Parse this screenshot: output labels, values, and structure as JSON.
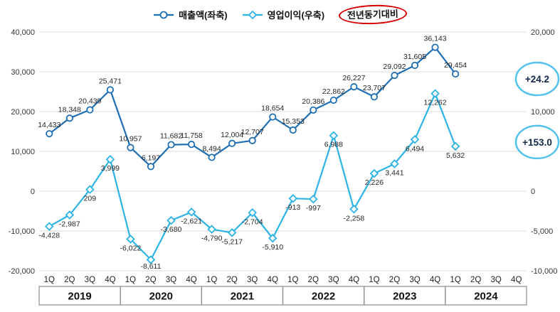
{
  "legend": {
    "series1": "매출액(좌축)",
    "series2": "영업이익(우축)",
    "yoy": "전년동기대비"
  },
  "colors": {
    "revenue": "#1F6FB5",
    "profit": "#2EB3E6",
    "grid": "#DADADA",
    "tick_text": "#333333",
    "data_label": "#262626",
    "annotation_stroke": "#53C3EE",
    "annotation_text": "#12284B",
    "yoy_circle": "#D70000",
    "box_border": "#8C8C8C"
  },
  "chart_data": {
    "type": "line",
    "title": "",
    "quarter_labels": [
      "1Q",
      "2Q",
      "3Q",
      "4Q"
    ],
    "years": [
      "2019",
      "2020",
      "2021",
      "2022",
      "2023",
      "2024"
    ],
    "left_axis": {
      "name": "매출액(좌축)",
      "min": -20000,
      "max": 40000,
      "ticks": [
        40000,
        30000,
        20000,
        10000,
        0,
        -10000,
        -20000
      ]
    },
    "right_axis": {
      "name": "영업이익(우축)",
      "min": -10000,
      "max": 20000,
      "ticks": [
        20000,
        15000,
        10000,
        5000,
        0,
        -5000,
        -10000
      ]
    },
    "grid": true,
    "legend_position": "top",
    "series": [
      {
        "name": "매출액(좌축)",
        "axis": "left",
        "marker": "circle",
        "values": [
          14433,
          18348,
          20439,
          25471,
          10957,
          6197,
          11682,
          11758,
          8494,
          12004,
          12707,
          18654,
          15353,
          20386,
          22862,
          26227,
          23707,
          29092,
          31605,
          36143,
          29454
        ]
      },
      {
        "name": "영업이익(우축)",
        "axis": "right",
        "marker": "diamond",
        "values": [
          -4428,
          -2987,
          209,
          3999,
          -6022,
          -8611,
          -3680,
          -2621,
          -4790,
          -5217,
          -2704,
          -5910,
          -913,
          -997,
          6988,
          -2258,
          2226,
          3441,
          6494,
          12262,
          5632
        ]
      }
    ],
    "annotations": [
      {
        "text": "+24.2",
        "series": 0
      },
      {
        "text": "+153.0",
        "series": 1
      }
    ]
  }
}
